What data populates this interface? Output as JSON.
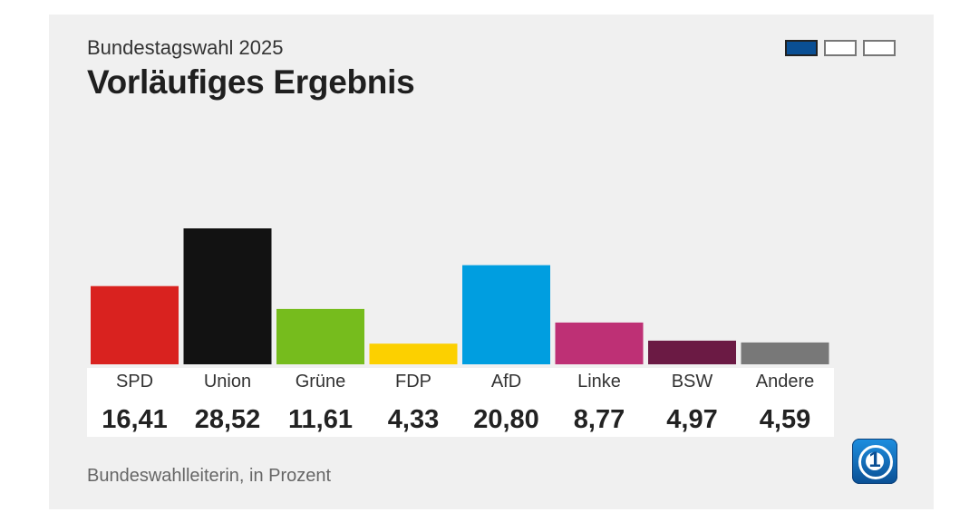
{
  "header": {
    "subtitle": "Bundestagswahl 2025",
    "title": "Vorläufiges Ergebnis"
  },
  "pager": {
    "count": 3,
    "active": 0
  },
  "footer": {
    "source": "Bundeswahlleiterin, in Prozent"
  },
  "logo": {
    "icon": "tagesschau-logo-icon"
  },
  "chart_data": {
    "type": "bar",
    "title": "Vorläufiges Ergebnis",
    "subtitle": "Bundestagswahl 2025",
    "categories": [
      "SPD",
      "Union",
      "Grüne",
      "FDP",
      "AfD",
      "Linke",
      "BSW",
      "Andere"
    ],
    "values": [
      16.41,
      28.52,
      11.61,
      4.33,
      20.8,
      8.77,
      4.97,
      4.59
    ],
    "value_labels": [
      "16,41",
      "28,52",
      "11,61",
      "4,33",
      "20,80",
      "8,77",
      "4,97",
      "4,59"
    ],
    "colors": [
      "#d9221f",
      "#121212",
      "#76bc1d",
      "#fcd000",
      "#009ee0",
      "#be3075",
      "#6b1a44",
      "#787878"
    ],
    "ylim": [
      0,
      30
    ],
    "grid": false,
    "legend": "none",
    "unit": "Prozent"
  }
}
